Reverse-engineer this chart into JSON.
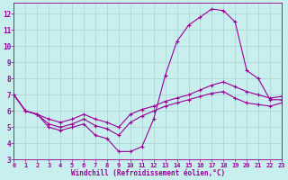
{
  "xlabel": "Windchill (Refroidissement éolien,°C)",
  "bg_color": "#c8eeee",
  "grid_color": "#a8d4d4",
  "line_color": "#990099",
  "hours": [
    0,
    1,
    2,
    3,
    4,
    5,
    6,
    7,
    8,
    9,
    10,
    11,
    12,
    13,
    14,
    15,
    16,
    17,
    18,
    19,
    20,
    21,
    22,
    23
  ],
  "line_curvy": [
    7.0,
    6.0,
    5.8,
    5.0,
    4.8,
    5.0,
    5.2,
    4.5,
    4.3,
    3.5,
    3.5,
    3.8,
    5.5,
    8.2,
    10.3,
    11.3,
    11.8,
    12.3,
    12.2,
    11.5,
    8.5,
    8.0,
    6.7,
    6.7
  ],
  "line_high": [
    7.0,
    6.0,
    5.8,
    5.5,
    5.3,
    5.5,
    5.8,
    5.5,
    5.3,
    5.0,
    5.8,
    6.1,
    6.3,
    6.6,
    6.8,
    7.0,
    7.3,
    7.6,
    7.8,
    7.5,
    7.2,
    7.0,
    6.8,
    6.9
  ],
  "line_mid": [
    7.0,
    6.0,
    5.8,
    5.2,
    5.0,
    5.2,
    5.5,
    5.1,
    4.9,
    4.5,
    5.3,
    5.7,
    6.0,
    6.3,
    6.5,
    6.7,
    6.9,
    7.1,
    7.2,
    6.8,
    6.5,
    6.4,
    6.3,
    6.5
  ],
  "ylim_min": 3,
  "ylim_max": 12.7,
  "xlim_min": 0,
  "xlim_max": 23,
  "yticks": [
    3,
    4,
    5,
    6,
    7,
    8,
    9,
    10,
    11,
    12
  ],
  "xticks": [
    0,
    1,
    2,
    3,
    4,
    5,
    6,
    7,
    8,
    9,
    10,
    11,
    12,
    13,
    14,
    15,
    16,
    17,
    18,
    19,
    20,
    21,
    22,
    23
  ],
  "marker_size": 2.0,
  "lw": 0.8,
  "tick_fontsize": 5.0,
  "xlabel_fontsize": 5.5
}
